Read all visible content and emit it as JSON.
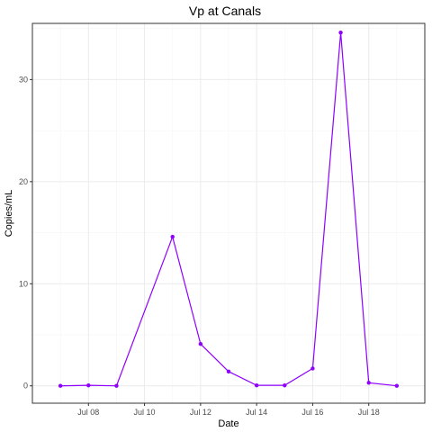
{
  "chart_data": {
    "type": "line",
    "title": "Vp at Canals",
    "xlabel": "Date",
    "ylabel": "Copies/mL",
    "x_tick_labels": [
      "Jul 08",
      "Jul 10",
      "Jul 12",
      "Jul 14",
      "Jul 16",
      "Jul 18"
    ],
    "y_ticks": [
      0,
      10,
      20,
      30
    ],
    "xlim": [
      "2023-07-06",
      "2023-07-20"
    ],
    "ylim": [
      -1.7,
      35.5
    ],
    "grid": true,
    "series": [
      {
        "color": "#8f00ff",
        "points": [
          {
            "x": "2023-07-07",
            "y": 0
          },
          {
            "x": "2023-07-08",
            "y": 0.05
          },
          {
            "x": "2023-07-09",
            "y": 0
          },
          {
            "x": "2023-07-11",
            "y": 14.6
          },
          {
            "x": "2023-07-12",
            "y": 4.1
          },
          {
            "x": "2023-07-13",
            "y": 1.4
          },
          {
            "x": "2023-07-14",
            "y": 0.05
          },
          {
            "x": "2023-07-15",
            "y": 0.05
          },
          {
            "x": "2023-07-16",
            "y": 1.7
          },
          {
            "x": "2023-07-17",
            "y": 34.6
          },
          {
            "x": "2023-07-18",
            "y": 0.3
          },
          {
            "x": "2023-07-19",
            "y": 0
          }
        ]
      }
    ]
  }
}
